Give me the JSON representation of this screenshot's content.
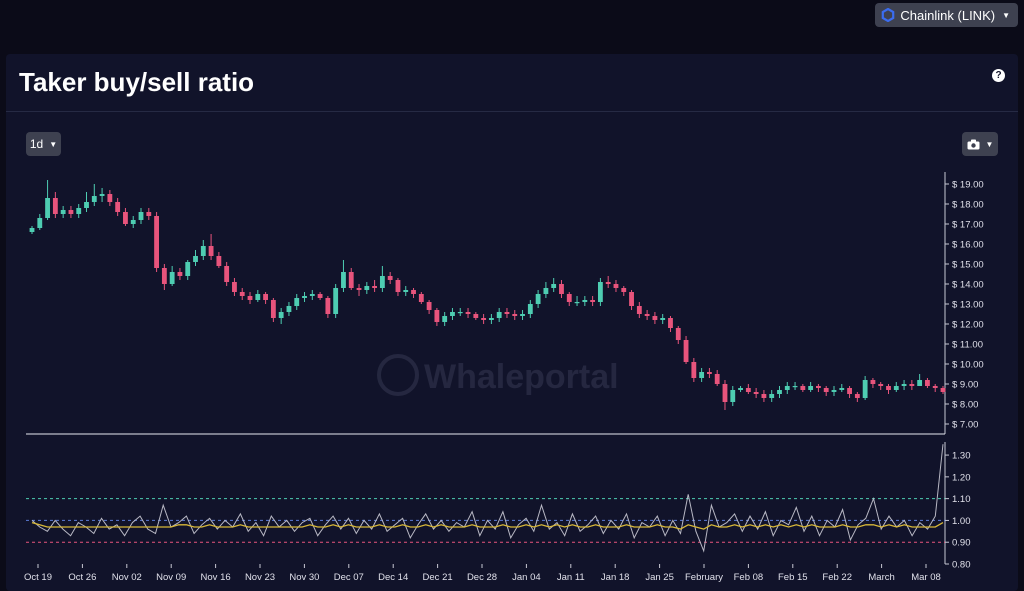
{
  "header": {
    "asset_selector": "Chainlink (LINK)"
  },
  "panel": {
    "title": "Taker buy/sell ratio",
    "help_label": "?",
    "timeframe_label": "1d"
  },
  "watermark": "Whaleportal",
  "colors": {
    "up": "#4ecdb2",
    "down": "#e8547c",
    "ratio_line": "#b8b8c4",
    "ma_line": "#d8b838",
    "level_green": "#4ecdb2",
    "level_blue": "#5b7bd6",
    "level_red": "#e8547c"
  },
  "icons": {
    "asset": "chainlink-hexagon-icon",
    "dropdown": "caret-down-icon",
    "camera": "camera-icon",
    "help": "question-circle-icon"
  },
  "chart_data": [
    {
      "type": "candlestick",
      "title": "",
      "ylabel": "",
      "price_ticks": [
        "$ 19.00",
        "$ 18.00",
        "$ 17.00",
        "$ 16.00",
        "$ 15.00",
        "$ 14.00",
        "$ 13.00",
        "$ 12.00",
        "$ 11.00",
        "$ 10.00",
        "$ 9.00",
        "$ 8.00",
        "$ 7.00"
      ],
      "ylim": [
        6.5,
        19.6
      ],
      "x_ticks": [
        "Oct 19",
        "Oct 26",
        "Nov 02",
        "Nov 09",
        "Nov 16",
        "Nov 23",
        "Nov 30",
        "Dec 07",
        "Dec 14",
        "Dec 21",
        "Dec 28",
        "Jan 04",
        "Jan 11",
        "Jan 18",
        "Jan 25",
        "February",
        "Feb 08",
        "Feb 15",
        "Feb 22",
        "March",
        "Mar 08"
      ],
      "close": [
        16.8,
        17.3,
        18.3,
        17.5,
        17.7,
        17.5,
        17.8,
        18.1,
        18.4,
        18.5,
        18.1,
        17.6,
        17.0,
        17.2,
        17.6,
        17.4,
        14.8,
        14.0,
        14.6,
        14.4,
        15.1,
        15.4,
        15.9,
        15.4,
        14.9,
        14.1,
        13.6,
        13.4,
        13.2,
        13.5,
        13.2,
        12.3,
        12.6,
        12.9,
        13.3,
        13.4,
        13.5,
        13.3,
        12.5,
        13.8,
        14.6,
        13.8,
        13.7,
        13.9,
        13.8,
        14.4,
        14.2,
        13.6,
        13.7,
        13.5,
        13.1,
        12.7,
        12.1,
        12.4,
        12.6,
        12.6,
        12.5,
        12.3,
        12.2,
        12.3,
        12.6,
        12.5,
        12.4,
        12.5,
        13.0,
        13.5,
        13.8,
        14.0,
        13.5,
        13.1,
        13.1,
        13.2,
        13.1,
        14.1,
        14.0,
        13.8,
        13.6,
        12.9,
        12.5,
        12.4,
        12.2,
        12.3,
        11.8,
        11.2,
        10.1,
        9.3,
        9.6,
        9.5,
        9.0,
        8.1,
        8.7,
        8.8,
        8.6,
        8.5,
        8.3,
        8.5,
        8.7,
        8.9,
        8.9,
        8.7,
        8.9,
        8.8,
        8.6,
        8.7,
        8.8,
        8.5,
        8.3,
        9.2,
        9.0,
        8.9,
        8.7,
        8.9,
        9.0,
        8.9,
        9.2,
        8.9,
        8.8,
        8.6
      ],
      "open": [
        16.6,
        16.8,
        17.3,
        18.3,
        17.5,
        17.7,
        17.5,
        17.8,
        18.1,
        18.4,
        18.5,
        18.1,
        17.6,
        17.0,
        17.2,
        17.6,
        17.4,
        14.8,
        14.0,
        14.6,
        14.4,
        15.1,
        15.4,
        15.9,
        15.4,
        14.9,
        14.1,
        13.6,
        13.4,
        13.2,
        13.5,
        13.2,
        12.3,
        12.6,
        12.9,
        13.3,
        13.4,
        13.5,
        13.3,
        12.5,
        13.8,
        14.6,
        13.8,
        13.7,
        13.9,
        13.8,
        14.4,
        14.2,
        13.6,
        13.7,
        13.5,
        13.1,
        12.7,
        12.1,
        12.4,
        12.6,
        12.6,
        12.5,
        12.3,
        12.2,
        12.3,
        12.6,
        12.5,
        12.4,
        12.5,
        13.0,
        13.5,
        13.8,
        14.0,
        13.5,
        13.1,
        13.1,
        13.2,
        13.1,
        14.1,
        14.0,
        13.8,
        13.6,
        12.9,
        12.5,
        12.4,
        12.2,
        12.3,
        11.8,
        11.2,
        10.1,
        9.3,
        9.6,
        9.5,
        9.0,
        8.1,
        8.7,
        8.8,
        8.6,
        8.5,
        8.3,
        8.5,
        8.7,
        8.9,
        8.9,
        8.7,
        8.9,
        8.8,
        8.6,
        8.7,
        8.8,
        8.5,
        8.3,
        9.2,
        9.0,
        8.9,
        8.7,
        8.9,
        9.0,
        8.9,
        9.2,
        8.9,
        8.8
      ],
      "high": [
        16.9,
        17.5,
        19.2,
        18.6,
        17.9,
        17.9,
        18.0,
        18.6,
        19.0,
        18.8,
        18.7,
        18.3,
        17.8,
        17.4,
        17.8,
        17.8,
        17.6,
        15.0,
        14.9,
        14.8,
        15.2,
        15.7,
        16.2,
        16.5,
        15.6,
        15.1,
        14.3,
        13.8,
        13.6,
        13.7,
        13.6,
        13.3,
        12.8,
        13.1,
        13.5,
        13.6,
        13.7,
        13.6,
        13.4,
        14.0,
        15.2,
        14.8,
        14.0,
        14.1,
        14.2,
        14.9,
        14.6,
        14.3,
        13.9,
        13.8,
        13.6,
        13.2,
        12.8,
        12.6,
        12.8,
        12.8,
        12.8,
        12.6,
        12.5,
        12.5,
        12.8,
        12.8,
        12.7,
        12.7,
        13.2,
        13.7,
        14.1,
        14.3,
        14.2,
        13.6,
        13.4,
        13.4,
        13.4,
        14.3,
        14.4,
        14.2,
        13.9,
        13.7,
        13.1,
        12.7,
        12.6,
        12.5,
        12.4,
        11.9,
        11.4,
        10.3,
        9.8,
        9.8,
        9.7,
        9.2,
        8.9,
        8.9,
        9.0,
        8.8,
        8.7,
        8.7,
        8.9,
        9.1,
        9.1,
        9.0,
        9.1,
        9.0,
        8.9,
        8.9,
        9.0,
        8.9,
        8.6,
        9.4,
        9.3,
        9.1,
        9.0,
        9.1,
        9.2,
        9.2,
        9.5,
        9.3,
        9.0,
        8.9
      ],
      "low": [
        16.5,
        16.7,
        17.2,
        17.3,
        17.3,
        17.3,
        17.3,
        17.6,
        17.9,
        18.1,
        17.9,
        17.4,
        16.9,
        16.8,
        17.0,
        17.2,
        14.6,
        13.7,
        13.9,
        14.2,
        14.2,
        14.9,
        15.2,
        15.2,
        14.8,
        13.9,
        13.4,
        13.2,
        13.0,
        13.1,
        13.0,
        12.1,
        12.0,
        12.4,
        12.7,
        13.1,
        13.2,
        13.2,
        12.3,
        12.3,
        13.6,
        13.7,
        13.4,
        13.5,
        13.6,
        13.6,
        14.0,
        13.4,
        13.4,
        13.3,
        13.0,
        12.5,
        11.9,
        11.9,
        12.2,
        12.4,
        12.3,
        12.2,
        12.0,
        12.0,
        12.1,
        12.3,
        12.2,
        12.2,
        12.3,
        12.8,
        13.3,
        13.6,
        13.3,
        12.9,
        12.9,
        12.9,
        12.9,
        12.9,
        13.8,
        13.6,
        13.4,
        12.7,
        12.3,
        12.2,
        12.0,
        12.0,
        11.6,
        11.0,
        10.0,
        9.1,
        9.1,
        9.3,
        8.9,
        7.7,
        7.9,
        8.6,
        8.5,
        8.3,
        8.1,
        8.1,
        8.3,
        8.5,
        8.7,
        8.6,
        8.6,
        8.6,
        8.4,
        8.4,
        8.6,
        8.3,
        8.1,
        8.2,
        8.8,
        8.7,
        8.5,
        8.6,
        8.7,
        8.7,
        8.9,
        8.8,
        8.6,
        8.5
      ]
    },
    {
      "type": "line",
      "title": "",
      "ratio_ticks": [
        "1.30",
        "1.20",
        "1.10",
        "1.00",
        "0.90",
        "0.80"
      ],
      "ylim": [
        0.8,
        1.36
      ],
      "reference_levels": [
        1.1,
        1.0,
        0.9
      ],
      "series": [
        {
          "values": [
            1.0,
            0.97,
            0.95,
            1.0,
            0.96,
            0.93,
            0.99,
            0.97,
            0.94,
            1.01,
            0.96,
            0.98,
            0.93,
            0.99,
            1.02,
            0.96,
            0.94,
            1.07,
            0.97,
            0.99,
            1.02,
            0.94,
            0.98,
            1.01,
            0.96,
            1.0,
            0.97,
            1.03,
            0.95,
            0.99,
            0.93,
            1.02,
            0.97,
            1.0,
            0.95,
            0.99,
            1.01,
            0.93,
            0.98,
            1.02,
            0.96,
            1.01,
            0.94,
            1.0,
            0.96,
            1.03,
            0.95,
            0.98,
            1.01,
            0.92,
            0.98,
            1.03,
            0.96,
            1.0,
            0.95,
            0.99,
            0.97,
            1.04,
            0.93,
            1.0,
            0.96,
            1.04,
            0.92,
            0.98,
            1.01,
            0.95,
            1.07,
            0.96,
            0.99,
            0.93,
            1.03,
            0.95,
            0.98,
            1.02,
            0.94,
            1.0,
            0.96,
            1.03,
            0.92,
            0.99,
            0.97,
            1.02,
            0.93,
            1.0,
            0.94,
            1.12,
            0.95,
            0.86,
            1.07,
            0.97,
            0.99,
            1.03,
            0.95,
            1.02,
            0.96,
            1.04,
            0.93,
            1.0,
            0.98,
            1.06,
            0.95,
            1.02,
            0.93,
            1.0,
            0.97,
            1.05,
            0.91,
            0.98,
            1.01,
            1.1,
            0.96,
            1.02,
            0.97,
            1.0,
            0.93,
            0.99,
            0.96,
            1.02,
            1.35
          ]
        },
        {
          "values": [
            0.99,
            0.98,
            0.97,
            0.97,
            0.97,
            0.97,
            0.97,
            0.97,
            0.97,
            0.97,
            0.97,
            0.97,
            0.97,
            0.97,
            0.97,
            0.97,
            0.97,
            0.97,
            0.97,
            0.98,
            0.98,
            0.97,
            0.97,
            0.98,
            0.97,
            0.97,
            0.97,
            0.98,
            0.97,
            0.97,
            0.97,
            0.97,
            0.97,
            0.97,
            0.97,
            0.97,
            0.98,
            0.97,
            0.97,
            0.98,
            0.97,
            0.98,
            0.97,
            0.97,
            0.97,
            0.98,
            0.97,
            0.97,
            0.98,
            0.97,
            0.97,
            0.98,
            0.97,
            0.98,
            0.97,
            0.97,
            0.97,
            0.98,
            0.97,
            0.97,
            0.97,
            0.98,
            0.97,
            0.97,
            0.98,
            0.97,
            0.98,
            0.97,
            0.98,
            0.97,
            0.98,
            0.97,
            0.97,
            0.98,
            0.97,
            0.97,
            0.97,
            0.98,
            0.97,
            0.97,
            0.97,
            0.98,
            0.97,
            0.97,
            0.96,
            0.98,
            0.97,
            0.96,
            0.98,
            0.97,
            0.97,
            0.98,
            0.97,
            0.98,
            0.97,
            0.98,
            0.97,
            0.98,
            0.97,
            0.98,
            0.97,
            0.98,
            0.97,
            0.97,
            0.97,
            0.98,
            0.97,
            0.97,
            0.98,
            0.98,
            0.97,
            0.98,
            0.97,
            0.98,
            0.97,
            0.97,
            0.97,
            0.97,
            0.99
          ]
        }
      ]
    }
  ]
}
